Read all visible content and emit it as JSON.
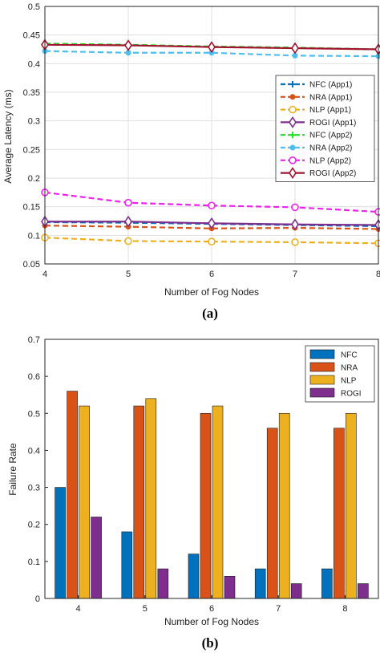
{
  "chart_data": [
    {
      "type": "line",
      "panel_label": "(a)",
      "xlabel": "Number of Fog Nodes",
      "ylabel": "Average Latency (ms)",
      "xlim": [
        4,
        8
      ],
      "ylim": [
        0.05,
        0.5
      ],
      "x": [
        4,
        5,
        6,
        7,
        8
      ],
      "xticks": [
        "4",
        "5",
        "6",
        "7",
        "8"
      ],
      "yticks": [
        "0.05",
        "0.1",
        "0.15",
        "0.2",
        "0.25",
        "0.3",
        "0.35",
        "0.4",
        "0.45",
        "0.5"
      ],
      "grid": true,
      "legend_position": "center-right",
      "series": [
        {
          "name": "NFC (App1)",
          "color": "#0072BD",
          "dash": "dashed",
          "marker": "plus",
          "values": [
            0.123,
            0.122,
            0.12,
            0.118,
            0.116
          ]
        },
        {
          "name": "NRA (App1)",
          "color": "#D95319",
          "dash": "dashed",
          "marker": "dot",
          "values": [
            0.117,
            0.115,
            0.112,
            0.113,
            0.111
          ]
        },
        {
          "name": "NLP (App1)",
          "color": "#EDB120",
          "dash": "dashed",
          "marker": "circle",
          "values": [
            0.096,
            0.09,
            0.089,
            0.088,
            0.086
          ]
        },
        {
          "name": "ROGI (App1)",
          "color": "#7E2F8E",
          "dash": "solid",
          "marker": "diamond",
          "values": [
            0.124,
            0.124,
            0.121,
            0.119,
            0.118
          ]
        },
        {
          "name": "NFC (App2)",
          "color": "#22DD22",
          "dash": "dashed",
          "marker": "plus",
          "values": [
            0.435,
            0.433,
            0.43,
            0.428,
            0.425
          ]
        },
        {
          "name": "NRA (App2)",
          "color": "#4DBEEE",
          "dash": "dashed",
          "marker": "dot",
          "values": [
            0.422,
            0.419,
            0.419,
            0.414,
            0.413
          ]
        },
        {
          "name": "NLP (App2)",
          "color": "#EE22EE",
          "dash": "dashed",
          "marker": "circle",
          "values": [
            0.175,
            0.157,
            0.152,
            0.149,
            0.141
          ]
        },
        {
          "name": "ROGI (App2)",
          "color": "#A2142F",
          "dash": "solid",
          "marker": "diamond",
          "values": [
            0.433,
            0.432,
            0.429,
            0.427,
            0.425
          ]
        }
      ]
    },
    {
      "type": "bar",
      "panel_label": "(b)",
      "xlabel": "Number of Fog Nodes",
      "ylabel": "Failure Rate",
      "categories": [
        "4",
        "5",
        "6",
        "7",
        "8"
      ],
      "ylim": [
        0,
        0.7
      ],
      "yticks": [
        "0",
        "0.1",
        "0.2",
        "0.3",
        "0.4",
        "0.5",
        "0.6",
        "0.7"
      ],
      "grid": false,
      "legend_position": "top-right",
      "series": [
        {
          "name": "NFC",
          "color": "#0072BD",
          "values": [
            0.3,
            0.18,
            0.12,
            0.08,
            0.08
          ]
        },
        {
          "name": "NRA",
          "color": "#D95319",
          "values": [
            0.56,
            0.52,
            0.5,
            0.46,
            0.46
          ]
        },
        {
          "name": "NLP",
          "color": "#EDB120",
          "values": [
            0.52,
            0.54,
            0.52,
            0.5,
            0.5
          ]
        },
        {
          "name": "ROGI",
          "color": "#7E2F8E",
          "values": [
            0.22,
            0.08,
            0.06,
            0.04,
            0.04
          ]
        }
      ]
    }
  ]
}
